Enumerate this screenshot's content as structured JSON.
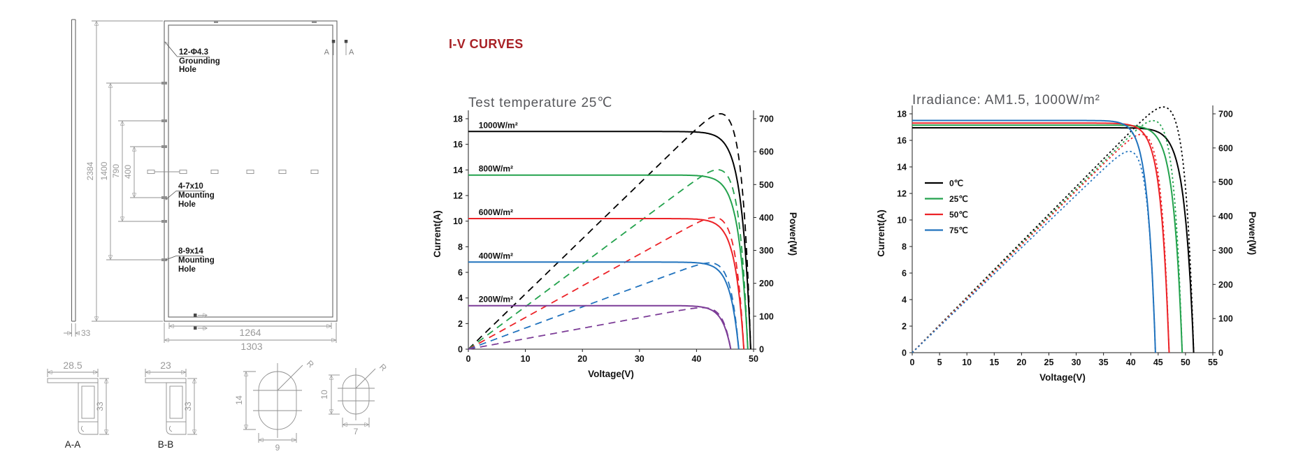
{
  "page": {
    "heading": "I-V CURVES",
    "heading_color": "#A82025"
  },
  "drawing": {
    "callouts": {
      "grounding": {
        "line1": "12-Φ4.3",
        "line2": "Grounding",
        "line3": "Hole"
      },
      "mount1": {
        "line1": "4-7x10",
        "line2": "Mounting",
        "line3": "Hole"
      },
      "mount2": {
        "line1": "8-9x14",
        "line2": "Mounting",
        "line3": "Hole"
      }
    },
    "dims": {
      "total_height": "2384",
      "span_1400": "1400",
      "span_790": "790",
      "span_400": "400",
      "frame_thickness": "33",
      "bottom_hole_span": "1264",
      "bottom_width": "1303",
      "profile_a_width": "28.5",
      "profile_a_height": "33",
      "profile_b_width": "23",
      "profile_b_height": "33",
      "slot1_height": "14",
      "slot1_width": "9",
      "slot2_height": "10",
      "slot2_width": "7",
      "radius": "R"
    },
    "sections": {
      "marker_a": "A",
      "label_aa": "A-A",
      "label_bb": "B-B"
    }
  },
  "chart_data": [
    {
      "type": "line",
      "title": "Test temperature 25℃",
      "xlabel": "Voltage(V)",
      "ylabel": "Current(A)",
      "y2label": "Power(W)",
      "xlim": [
        0,
        50
      ],
      "ylim": [
        0,
        18
      ],
      "y2lim": [
        0,
        700
      ],
      "xticks": [
        0,
        10,
        20,
        30,
        40,
        50
      ],
      "yticks": [
        0,
        2,
        4,
        6,
        8,
        10,
        12,
        14,
        16,
        18
      ],
      "y2ticks": [
        0,
        100,
        200,
        300,
        400,
        500,
        600,
        700
      ],
      "grid": false,
      "legend_position": "series-labels-on-plot",
      "curve_styles": {
        "iv": "solid",
        "pv": "dashed"
      },
      "series": [
        {
          "label": "1000W/m²",
          "color": "#000000",
          "isc_a": 17.0,
          "voc_v": 49.5,
          "pmax_w": 715
        },
        {
          "label": "800W/m²",
          "color": "#23A24D",
          "isc_a": 13.6,
          "voc_v": 49.0,
          "pmax_w": 545
        },
        {
          "label": "600W/m²",
          "color": "#EC2227",
          "isc_a": 10.2,
          "voc_v": 48.3,
          "pmax_w": 400
        },
        {
          "label": "400W/m²",
          "color": "#2173BE",
          "isc_a": 6.8,
          "voc_v": 47.4,
          "pmax_w": 262
        },
        {
          "label": "200W/m²",
          "color": "#7C3C97",
          "isc_a": 3.4,
          "voc_v": 46.0,
          "pmax_w": 126
        }
      ]
    },
    {
      "type": "line",
      "title": "Irradiance: AM1.5, 1000W/m²",
      "xlabel": "Voltage(V)",
      "ylabel": "Current(A)",
      "y2label": "Power(W)",
      "xlim": [
        0,
        55
      ],
      "ylim": [
        0,
        18
      ],
      "y2lim": [
        0,
        700
      ],
      "xticks": [
        0,
        5,
        10,
        15,
        20,
        25,
        30,
        35,
        40,
        45,
        50,
        55
      ],
      "yticks": [
        0,
        2,
        4,
        6,
        8,
        10,
        12,
        14,
        16,
        18
      ],
      "y2ticks": [
        0,
        100,
        200,
        300,
        400,
        500,
        600,
        700
      ],
      "grid": false,
      "legend_position": "inside-left",
      "curve_styles": {
        "iv": "solid",
        "pv": "dotted"
      },
      "series": [
        {
          "label": "0℃",
          "color": "#000000",
          "isc_a": 16.95,
          "voc_v": 51.5,
          "pmax_w": 720
        },
        {
          "label": "25℃",
          "color": "#23A24D",
          "isc_a": 17.15,
          "voc_v": 49.4,
          "pmax_w": 680
        },
        {
          "label": "50℃",
          "color": "#EC2227",
          "isc_a": 17.3,
          "voc_v": 47.0,
          "pmax_w": 640
        },
        {
          "label": "75℃",
          "color": "#2173BE",
          "isc_a": 17.5,
          "voc_v": 44.5,
          "pmax_w": 590
        }
      ]
    }
  ]
}
